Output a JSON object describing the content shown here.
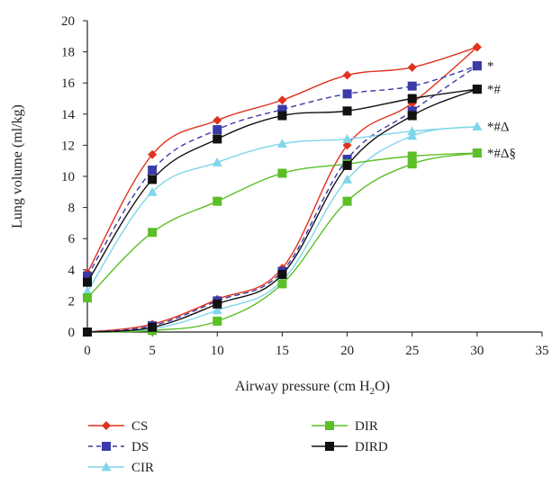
{
  "chart_data": {
    "type": "line",
    "xlabel": "Airway pressure (cm H",
    "xlabel_sub": "2",
    "xlabel_end": "O)",
    "ylabel": "Lung volume (ml/kg)",
    "xlim": [
      0,
      35
    ],
    "ylim": [
      0,
      20
    ],
    "xticks": [
      "0",
      "5",
      "10",
      "15",
      "20",
      "25",
      "30",
      "35"
    ],
    "yticks": [
      "0",
      "2",
      "4",
      "6",
      "8",
      "10",
      "12",
      "14",
      "16",
      "18",
      "20"
    ],
    "grid": false,
    "legend_position": "bottom",
    "series": [
      {
        "name": "CS",
        "color": "#e0321e",
        "marker": "diamond",
        "dash": "solid",
        "inflation": [
          [
            0,
            0
          ],
          [
            5,
            0.5
          ],
          [
            10,
            2.1
          ],
          [
            15,
            4.1
          ],
          [
            20,
            12.0
          ],
          [
            25,
            14.7
          ],
          [
            30,
            18.3
          ]
        ],
        "deflation": [
          [
            0,
            3.8
          ],
          [
            5,
            11.4
          ],
          [
            10,
            13.6
          ],
          [
            15,
            14.9
          ],
          [
            20,
            16.5
          ],
          [
            25,
            17.0
          ],
          [
            30,
            18.3
          ]
        ]
      },
      {
        "name": "DS",
        "color": "#3a3aa8",
        "marker": "square",
        "dash": "dashed",
        "inflation": [
          [
            0,
            0
          ],
          [
            5,
            0.4
          ],
          [
            10,
            2.0
          ],
          [
            15,
            3.9
          ],
          [
            20,
            11.1
          ],
          [
            25,
            14.2
          ],
          [
            30,
            17.1
          ]
        ],
        "deflation": [
          [
            0,
            3.6
          ],
          [
            5,
            10.4
          ],
          [
            10,
            13.0
          ],
          [
            15,
            14.3
          ],
          [
            20,
            15.3
          ],
          [
            25,
            15.8
          ],
          [
            30,
            17.1
          ]
        ]
      },
      {
        "name": "CIR",
        "color": "#7fd6ea",
        "marker": "triangle",
        "dash": "solid",
        "inflation": [
          [
            0,
            0
          ],
          [
            5,
            0.2
          ],
          [
            10,
            1.4
          ],
          [
            15,
            3.3
          ],
          [
            20,
            9.8
          ],
          [
            25,
            12.6
          ],
          [
            30,
            13.2
          ]
        ],
        "deflation": [
          [
            0,
            2.6
          ],
          [
            5,
            9.0
          ],
          [
            10,
            10.9
          ],
          [
            15,
            12.1
          ],
          [
            20,
            12.4
          ],
          [
            25,
            12.9
          ],
          [
            30,
            13.2
          ]
        ]
      },
      {
        "name": "DIR",
        "color": "#5bbf27",
        "marker": "square",
        "dash": "solid",
        "inflation": [
          [
            0,
            0
          ],
          [
            5,
            0.1
          ],
          [
            10,
            0.7
          ],
          [
            15,
            3.1
          ],
          [
            20,
            8.4
          ],
          [
            25,
            10.8
          ],
          [
            30,
            11.5
          ]
        ],
        "deflation": [
          [
            0,
            2.2
          ],
          [
            5,
            6.4
          ],
          [
            10,
            8.4
          ],
          [
            15,
            10.2
          ],
          [
            20,
            10.8
          ],
          [
            25,
            11.3
          ],
          [
            30,
            11.5
          ]
        ]
      },
      {
        "name": "DIRD",
        "color": "#111111",
        "marker": "square",
        "dash": "solid",
        "inflation": [
          [
            0,
            0
          ],
          [
            5,
            0.3
          ],
          [
            10,
            1.8
          ],
          [
            15,
            3.7
          ],
          [
            20,
            10.7
          ],
          [
            25,
            13.9
          ],
          [
            30,
            15.6
          ]
        ],
        "deflation": [
          [
            0,
            3.2
          ],
          [
            5,
            9.8
          ],
          [
            10,
            12.4
          ],
          [
            15,
            13.9
          ],
          [
            20,
            14.2
          ],
          [
            25,
            15.0
          ],
          [
            30,
            15.6
          ]
        ]
      }
    ],
    "annotations": [
      {
        "text": "*",
        "y": 17.1
      },
      {
        "text": "* # Δ",
        "y": 15.6,
        "display": "*#"
      },
      {
        "text": "* # Δ",
        "y": 13.2,
        "display": "*#Δ"
      },
      {
        "text": "* # Δ §",
        "y": 11.5,
        "display": "*#Δ§"
      }
    ]
  }
}
